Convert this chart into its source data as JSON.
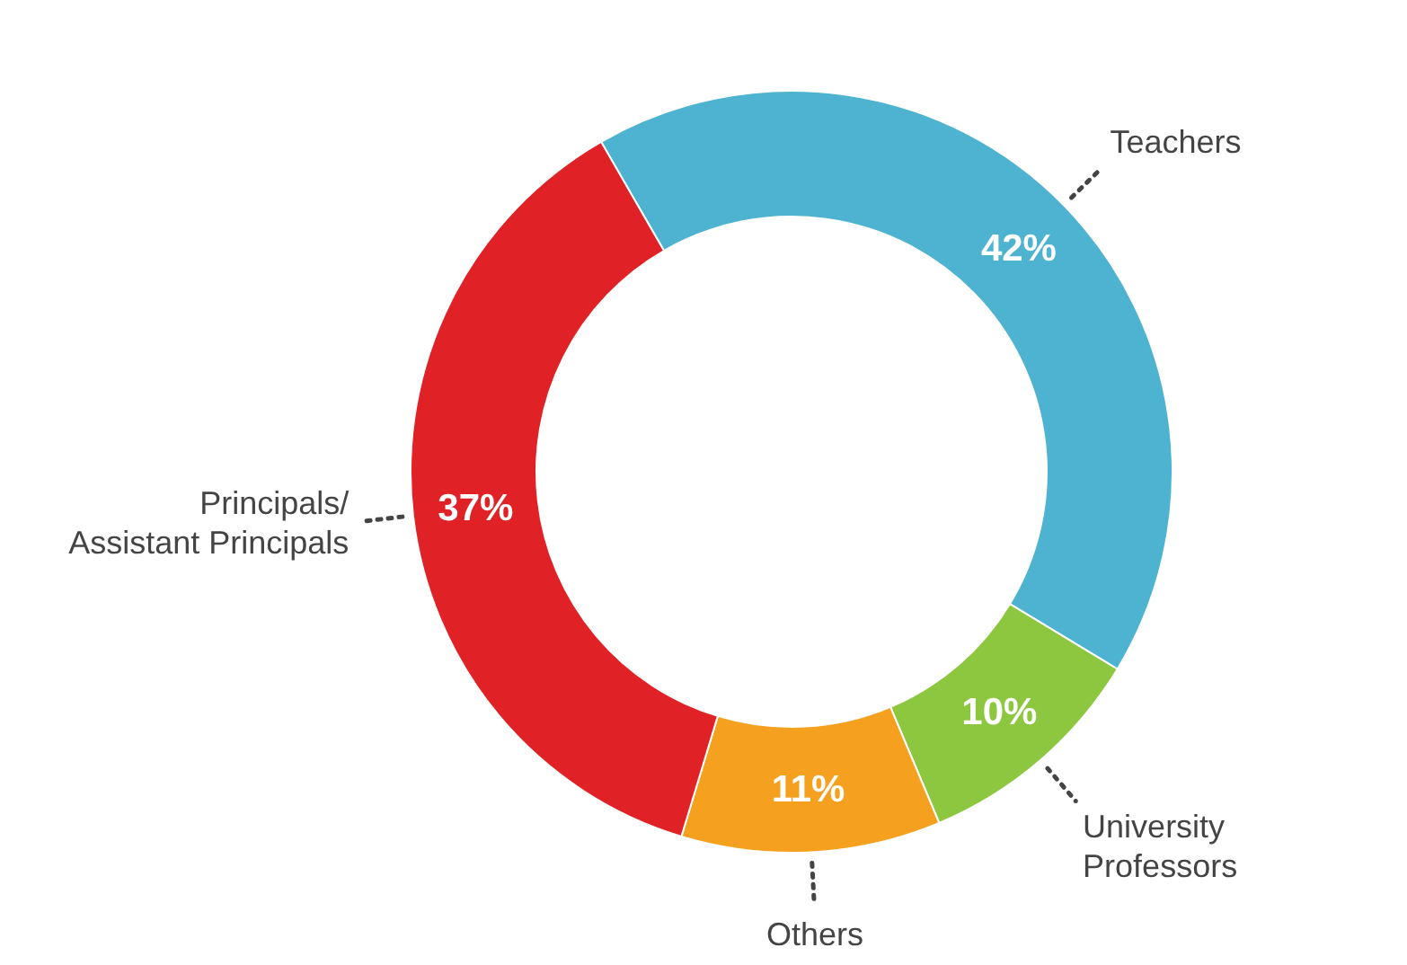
{
  "chart_data": {
    "type": "donut",
    "categories": [
      "Teachers",
      "University\nProfessors",
      "Others",
      "Principals/\nAssistant Principals"
    ],
    "values": [
      42,
      10,
      11,
      37
    ],
    "colors": [
      "#4db3d1",
      "#8dc63f",
      "#f5a01f",
      "#e02227"
    ],
    "value_labels": [
      "42%",
      "10%",
      "11%",
      "37%"
    ]
  }
}
